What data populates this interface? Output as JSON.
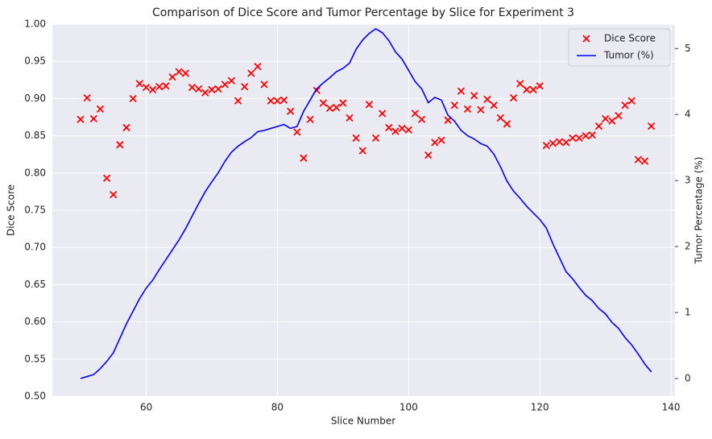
{
  "chart_data": {
    "type": "combo",
    "title": "Comparison of Dice Score and Tumor Percentage by Slice for Experiment 3",
    "x_label": "Slice Number",
    "y_label": "Dice Score",
    "y2_label": "Tumor Percentage (%)",
    "x": [
      50,
      51,
      52,
      53,
      54,
      55,
      56,
      57,
      58,
      59,
      60,
      61,
      62,
      63,
      64,
      65,
      66,
      67,
      68,
      69,
      70,
      71,
      72,
      73,
      74,
      75,
      76,
      77,
      78,
      79,
      80,
      81,
      82,
      83,
      84,
      85,
      86,
      87,
      88,
      89,
      90,
      91,
      92,
      93,
      94,
      95,
      96,
      97,
      98,
      99,
      100,
      101,
      102,
      103,
      104,
      105,
      106,
      107,
      108,
      109,
      110,
      111,
      112,
      113,
      114,
      115,
      116,
      117,
      118,
      119,
      120,
      121,
      122,
      123,
      124,
      125,
      126,
      127,
      128,
      129,
      130,
      131,
      132,
      133,
      134,
      135,
      136,
      137
    ],
    "series": [
      {
        "name": "Dice Score",
        "type": "scatter",
        "marker": "x",
        "color": "#ff0000",
        "axis": "y",
        "values": [
          0.872,
          0.901,
          0.873,
          0.886,
          0.793,
          0.771,
          0.838,
          0.861,
          0.9,
          0.92,
          0.915,
          0.912,
          0.916,
          0.917,
          0.929,
          0.936,
          0.934,
          0.915,
          0.913,
          0.908,
          0.912,
          0.913,
          0.919,
          0.924,
          0.897,
          0.916,
          0.934,
          0.943,
          0.919,
          0.897,
          0.897,
          0.898,
          0.883,
          0.855,
          0.82,
          0.872,
          0.911,
          0.894,
          0.887,
          0.888,
          0.894,
          0.874,
          0.847,
          0.83,
          0.892,
          0.847,
          0.88,
          0.861,
          0.856,
          0.86,
          0.858,
          0.88,
          0.872,
          0.824,
          0.841,
          0.844,
          0.871,
          0.891,
          0.91,
          0.886,
          0.904,
          0.885,
          0.899,
          0.891,
          0.874,
          0.866,
          0.901,
          0.92,
          0.912,
          0.912,
          0.917,
          0.837,
          0.84,
          0.842,
          0.841,
          0.847,
          0.847,
          0.85,
          0.851,
          0.863,
          0.873,
          0.87,
          0.877,
          0.891,
          0.897,
          0.818,
          0.816,
          0.863
        ]
      },
      {
        "name": "Tumor (%)",
        "type": "line",
        "color": "#0000ff",
        "axis": "y2",
        "values": [
          0.0,
          0.03,
          0.06,
          0.15,
          0.26,
          0.39,
          0.61,
          0.83,
          1.02,
          1.21,
          1.37,
          1.49,
          1.65,
          1.8,
          1.95,
          2.1,
          2.27,
          2.46,
          2.65,
          2.83,
          2.98,
          3.12,
          3.29,
          3.43,
          3.52,
          3.59,
          3.65,
          3.74,
          3.76,
          3.79,
          3.82,
          3.85,
          3.79,
          3.82,
          4.05,
          4.22,
          4.39,
          4.48,
          4.56,
          4.65,
          4.7,
          4.78,
          4.99,
          5.13,
          5.23,
          5.3,
          5.24,
          5.12,
          4.95,
          4.84,
          4.67,
          4.5,
          4.39,
          4.18,
          4.26,
          4.22,
          3.99,
          3.9,
          3.76,
          3.68,
          3.63,
          3.56,
          3.52,
          3.4,
          3.21,
          2.99,
          2.84,
          2.73,
          2.61,
          2.51,
          2.41,
          2.28,
          2.04,
          1.83,
          1.62,
          1.51,
          1.38,
          1.26,
          1.18,
          1.06,
          0.98,
          0.85,
          0.76,
          0.62,
          0.51,
          0.37,
          0.22,
          0.1
        ]
      }
    ],
    "xlim": [
      45.7,
      140.6
    ],
    "xticks": [
      60,
      80,
      100,
      120,
      140
    ],
    "ylim": [
      0.5,
      1.0
    ],
    "yticks": [
      {
        "value": 0.5,
        "label": "0.50"
      },
      0.55,
      {
        "value": 0.6,
        "label": "0.60"
      },
      0.65,
      {
        "value": 0.7,
        "label": "0.70"
      },
      0.75,
      {
        "value": 0.8,
        "label": "0.80"
      },
      0.85,
      {
        "value": 0.9,
        "label": "0.90"
      },
      0.95,
      {
        "value": 1.0,
        "label": "1.00"
      }
    ],
    "y2lim": [
      -0.27,
      5.37
    ],
    "y2ticks": [
      0,
      1,
      2,
      3,
      4,
      5
    ],
    "grid": true,
    "legend": "upper right"
  }
}
